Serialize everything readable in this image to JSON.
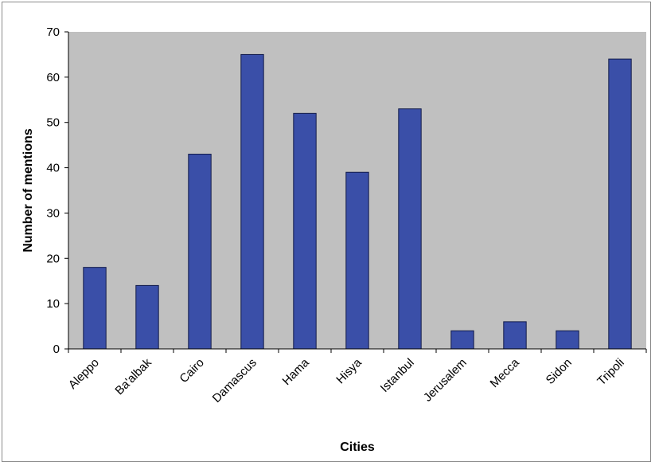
{
  "chart_data": {
    "type": "bar",
    "xlabel": "Cities",
    "ylabel": "Number of mentions",
    "ylim": [
      0,
      70
    ],
    "yticks": [
      0,
      10,
      20,
      30,
      40,
      50,
      60,
      70
    ],
    "grid": false,
    "categories": [
      "Aleppo",
      "Ba'albak",
      "Cairo",
      "Damascus",
      "Hama",
      "Hisya",
      "Istanbul",
      "Jerusalem",
      "Mecca",
      "Sidon",
      "Tripoli"
    ],
    "values": [
      18,
      14,
      43,
      65,
      52,
      39,
      53,
      4,
      6,
      4,
      64
    ],
    "colors": {
      "plot_background": "#c0c0c0",
      "bar_fill": "#3a4fa8",
      "bar_stroke": "#111a4a"
    }
  }
}
